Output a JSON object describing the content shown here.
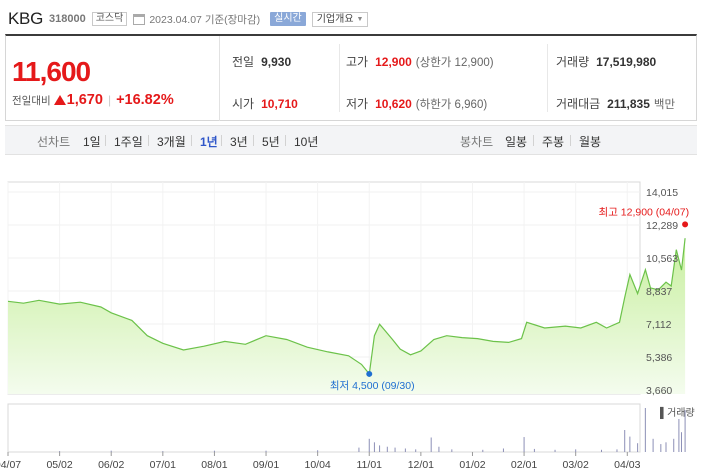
{
  "stock": {
    "name": "KBG",
    "code": "318000",
    "market": "코스닥",
    "date_text": "2023.04.07",
    "basis": "기준(장마감)",
    "realtime_label": "실시간",
    "overview_label": "기업개요"
  },
  "price": {
    "current": "11,600",
    "change_label": "전일대비",
    "change": "1,670",
    "change_pct": "+16.82%"
  },
  "stats": {
    "prev_label": "전일",
    "prev": "9,930",
    "high_label": "고가",
    "high": "12,900",
    "high_note": "(상한가 12,900)",
    "volume_label": "거래량",
    "volume": "17,519,980",
    "open_label": "시가",
    "open": "10,710",
    "low_label": "저가",
    "low": "10,620",
    "low_note": "(하한가 6,960)",
    "amount_label": "거래대금",
    "amount": "211,835",
    "amount_unit": "백만"
  },
  "toolbar": {
    "line_chart": "선차트",
    "periods": [
      "1일",
      "1주일",
      "3개월",
      "1년",
      "3년",
      "5년",
      "10년"
    ],
    "active_period": "1년",
    "candle_chart": "봉차트",
    "candle_periods": [
      "일봉",
      "주봉",
      "월봉"
    ]
  },
  "chart_data": {
    "type": "area",
    "x_ticks": [
      "04/07",
      "05/02",
      "06/02",
      "07/01",
      "08/01",
      "09/01",
      "10/04",
      "11/01",
      "12/01",
      "01/02",
      "02/01",
      "03/02",
      "04/03"
    ],
    "y_ticks": [
      "14,015",
      "12,289",
      "10,563",
      "8,837",
      "7,112",
      "5,386",
      "3,660"
    ],
    "ylim": [
      3660,
      14015
    ],
    "volume_label": "거래량",
    "high_annotation": "최고 12,900 (04/07)",
    "low_annotation": "최저 4,500 (09/30)",
    "line_color": "#6cc24a",
    "fill_color": "#dff5cf",
    "series": [
      {
        "values": [
          [
            0,
            8300
          ],
          [
            0.3,
            8200
          ],
          [
            0.6,
            8350
          ],
          [
            1.0,
            8150
          ],
          [
            1.4,
            8250
          ],
          [
            1.8,
            8000
          ],
          [
            2.0,
            7700
          ],
          [
            2.4,
            7300
          ],
          [
            2.7,
            6500
          ],
          [
            3.0,
            6100
          ],
          [
            3.4,
            5750
          ],
          [
            3.8,
            5950
          ],
          [
            4.2,
            6200
          ],
          [
            4.6,
            6050
          ],
          [
            5.0,
            6500
          ],
          [
            5.4,
            6300
          ],
          [
            5.8,
            5900
          ],
          [
            6.2,
            5650
          ],
          [
            6.6,
            5450
          ],
          [
            6.85,
            5000
          ],
          [
            7.0,
            4500
          ],
          [
            7.1,
            6500
          ],
          [
            7.2,
            7100
          ],
          [
            7.45,
            6300
          ],
          [
            7.6,
            5800
          ],
          [
            7.8,
            5500
          ],
          [
            8.0,
            5700
          ],
          [
            8.25,
            6300
          ],
          [
            8.5,
            6500
          ],
          [
            8.8,
            6400
          ],
          [
            9.1,
            6350
          ],
          [
            9.4,
            6200
          ],
          [
            9.7,
            6150
          ],
          [
            9.95,
            6350
          ],
          [
            10.05,
            7200
          ],
          [
            10.4,
            6900
          ],
          [
            10.8,
            7000
          ],
          [
            11.1,
            6900
          ],
          [
            11.4,
            7200
          ],
          [
            11.6,
            6900
          ],
          [
            11.85,
            7200
          ],
          [
            11.95,
            8500
          ],
          [
            12.05,
            9700
          ],
          [
            12.2,
            8700
          ],
          [
            12.35,
            9950
          ],
          [
            12.45,
            9000
          ],
          [
            12.6,
            8900
          ],
          [
            12.75,
            9300
          ],
          [
            12.85,
            9100
          ],
          [
            12.95,
            11000
          ],
          [
            13.05,
            9930
          ],
          [
            13.12,
            11600
          ]
        ]
      }
    ],
    "volume": [
      [
        1.0,
        0.02
      ],
      [
        2.0,
        0.03
      ],
      [
        3.0,
        0.02
      ],
      [
        4.0,
        0.03
      ],
      [
        5.0,
        0.03
      ],
      [
        6.0,
        0.04
      ],
      [
        6.8,
        0.1
      ],
      [
        7.0,
        0.3
      ],
      [
        7.1,
        0.22
      ],
      [
        7.2,
        0.15
      ],
      [
        7.35,
        0.12
      ],
      [
        7.5,
        0.1
      ],
      [
        7.7,
        0.08
      ],
      [
        7.9,
        0.06
      ],
      [
        8.2,
        0.33
      ],
      [
        8.35,
        0.12
      ],
      [
        8.6,
        0.06
      ],
      [
        9.2,
        0.05
      ],
      [
        9.6,
        0.08
      ],
      [
        10.0,
        0.34
      ],
      [
        10.2,
        0.07
      ],
      [
        10.6,
        0.05
      ],
      [
        11.0,
        0.06
      ],
      [
        11.5,
        0.05
      ],
      [
        11.8,
        0.06
      ],
      [
        11.95,
        0.5
      ],
      [
        12.05,
        0.35
      ],
      [
        12.2,
        0.2
      ],
      [
        12.35,
        1.0
      ],
      [
        12.5,
        0.3
      ],
      [
        12.65,
        0.18
      ],
      [
        12.75,
        0.22
      ],
      [
        12.9,
        0.3
      ],
      [
        13.0,
        0.75
      ],
      [
        13.05,
        0.45
      ],
      [
        13.12,
        0.95
      ]
    ]
  }
}
